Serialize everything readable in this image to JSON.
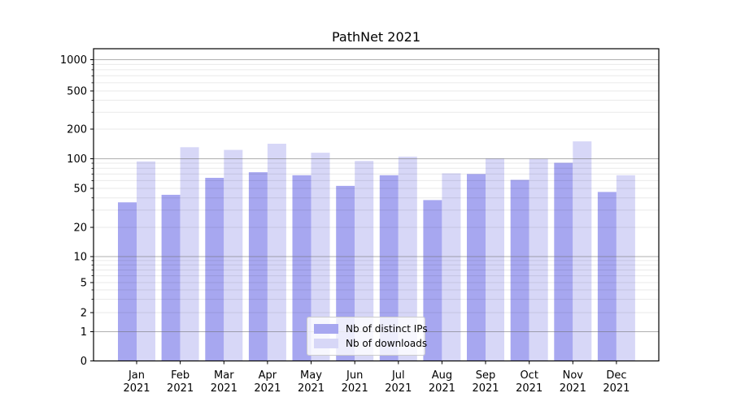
{
  "chart_data": {
    "type": "bar",
    "title": "PathNet 2021",
    "months": [
      "Jan",
      "Feb",
      "Mar",
      "Apr",
      "May",
      "Jun",
      "Jul",
      "Aug",
      "Sep",
      "Oct",
      "Nov",
      "Dec"
    ],
    "year_label": "2021",
    "series": [
      {
        "name": "Nb of distinct IPs",
        "color": "#a7a7f0",
        "values": [
          36,
          43,
          64,
          73,
          68,
          53,
          68,
          38,
          70,
          61,
          91,
          46
        ]
      },
      {
        "name": "Nb of downloads",
        "color": "#d7d7f7",
        "values": [
          94,
          131,
          123,
          142,
          115,
          95,
          105,
          71,
          101,
          100,
          150,
          68
        ]
      }
    ],
    "yticks": [
      0,
      1,
      2,
      5,
      10,
      20,
      50,
      100,
      200,
      500,
      1000
    ],
    "y_scale": "symlog",
    "ylim": [
      0,
      1400
    ],
    "grid": true,
    "legend_position": "lower center",
    "colors": {
      "major_grid": "#afafaf",
      "minor_grid": "#e9e9e9",
      "spine": "#000000",
      "text": "#000000"
    }
  }
}
